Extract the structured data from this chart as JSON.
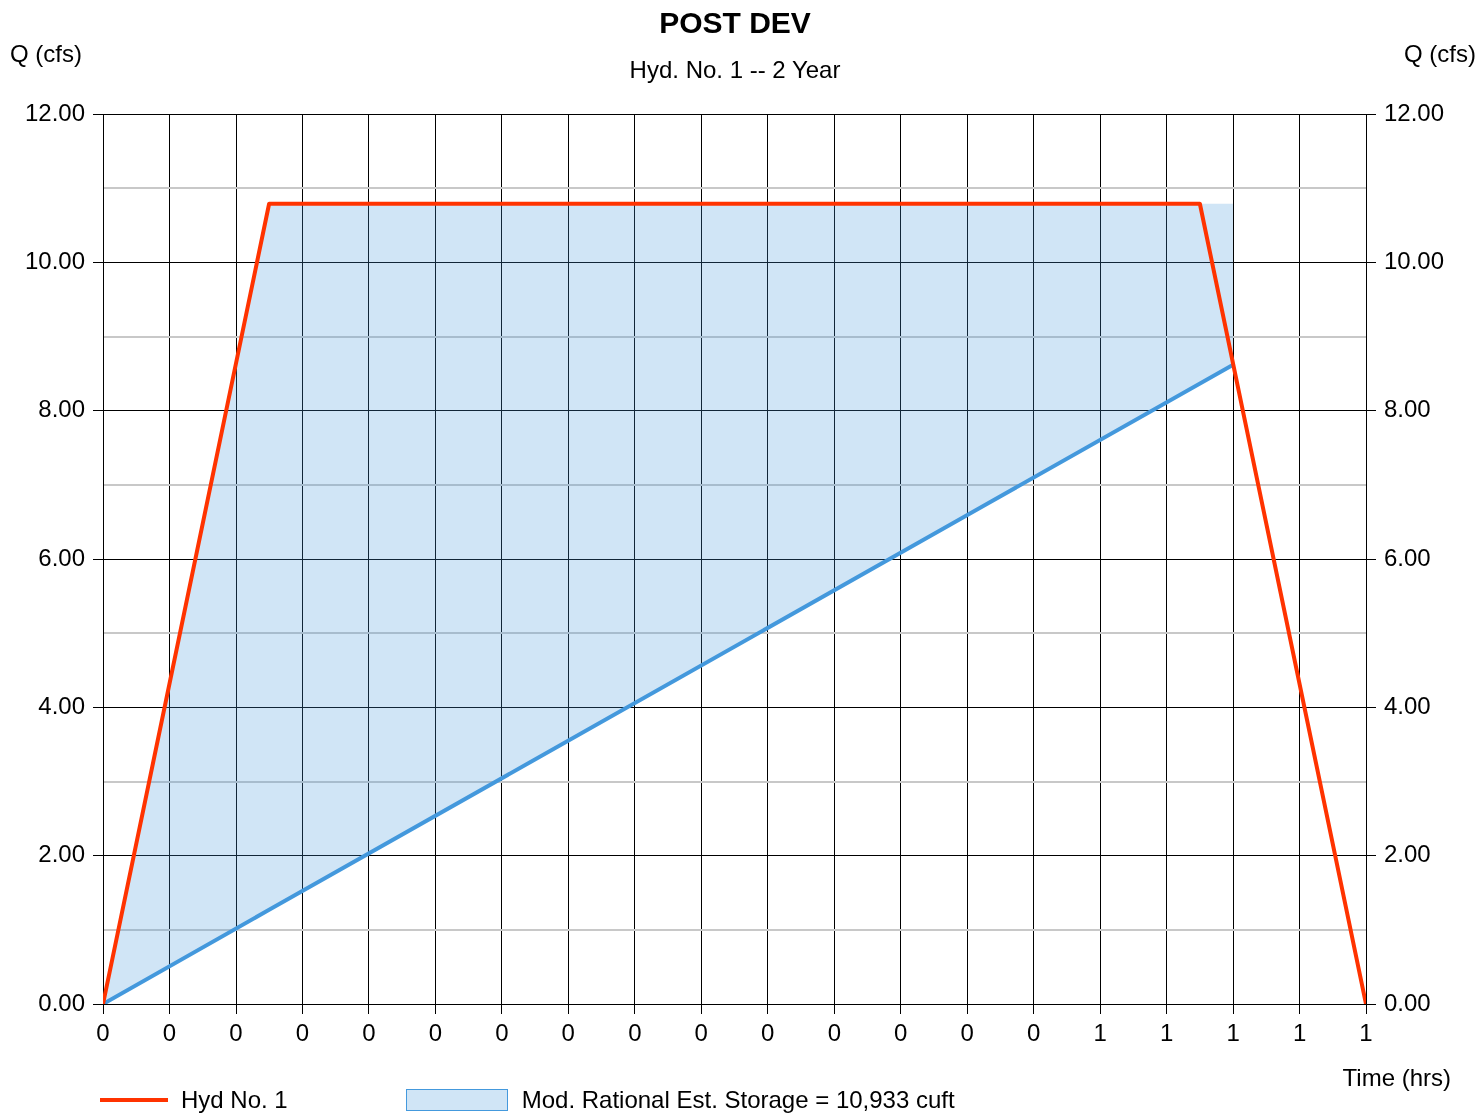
{
  "chart_data": {
    "type": "line",
    "title": "POST DEV",
    "subtitle": "Hyd. No. 1 -- 2 Year",
    "xlabel": "Time (hrs)",
    "ylabel": "Q (cfs)",
    "y2label": "Q (cfs)",
    "xlim": [
      0,
      0.6333
    ],
    "xticks": [
      {
        "value": 0,
        "label": "0"
      },
      {
        "value": 0.0333,
        "label": "0"
      },
      {
        "value": 0.0667,
        "label": "0"
      },
      {
        "value": 0.1,
        "label": "0"
      },
      {
        "value": 0.1333,
        "label": "0"
      },
      {
        "value": 0.1667,
        "label": "0"
      },
      {
        "value": 0.2,
        "label": "0"
      },
      {
        "value": 0.2333,
        "label": "0"
      },
      {
        "value": 0.2667,
        "label": "0"
      },
      {
        "value": 0.3,
        "label": "0"
      },
      {
        "value": 0.3333,
        "label": "0"
      },
      {
        "value": 0.3667,
        "label": "0"
      },
      {
        "value": 0.4,
        "label": "0"
      },
      {
        "value": 0.4333,
        "label": "0"
      },
      {
        "value": 0.4667,
        "label": "0"
      },
      {
        "value": 0.5,
        "label": "1"
      },
      {
        "value": 0.5333,
        "label": "1"
      },
      {
        "value": 0.5667,
        "label": "1"
      },
      {
        "value": 0.6,
        "label": "1"
      },
      {
        "value": 0.6333,
        "label": "1"
      }
    ],
    "ylim": [
      0,
      12
    ],
    "yticks": [
      {
        "value": 0,
        "label": "0.00"
      },
      {
        "value": 1,
        "label": null
      },
      {
        "value": 2,
        "label": "2.00"
      },
      {
        "value": 3,
        "label": null
      },
      {
        "value": 4,
        "label": "4.00"
      },
      {
        "value": 5,
        "label": null
      },
      {
        "value": 6,
        "label": "6.00"
      },
      {
        "value": 7,
        "label": null
      },
      {
        "value": 8,
        "label": "8.00"
      },
      {
        "value": 9,
        "label": null
      },
      {
        "value": 10,
        "label": "10.00"
      },
      {
        "value": 11,
        "label": null
      },
      {
        "value": 12,
        "label": "12.00"
      }
    ],
    "y2lim": [
      0,
      12
    ],
    "y2ticks": [
      {
        "value": 0,
        "label": "0.00"
      },
      {
        "value": 2,
        "label": "2.00"
      },
      {
        "value": 4,
        "label": "4.00"
      },
      {
        "value": 6,
        "label": "6.00"
      },
      {
        "value": 8,
        "label": "8.00"
      },
      {
        "value": 10,
        "label": "10.00"
      },
      {
        "value": 12,
        "label": "12.00"
      }
    ],
    "grid": true,
    "legend": "bottom",
    "series": [
      {
        "name": "Hyd No. 1",
        "type": "line",
        "color": "#ff3300",
        "x": [
          0,
          0.0833,
          0.55,
          0.6333
        ],
        "values": [
          0,
          10.79,
          10.79,
          0
        ]
      },
      {
        "name": "Mod. Rational Est. Storage = 10,933 cuft",
        "type": "line",
        "color": "#4499dd",
        "x": [
          0,
          0.0833,
          0.5667
        ],
        "values": [
          0,
          1.27,
          8.62
        ],
        "lower": [
          0,
          1.27,
          8.62
        ],
        "upper": [
          0,
          10.79,
          10.79
        ]
      }
    ]
  }
}
